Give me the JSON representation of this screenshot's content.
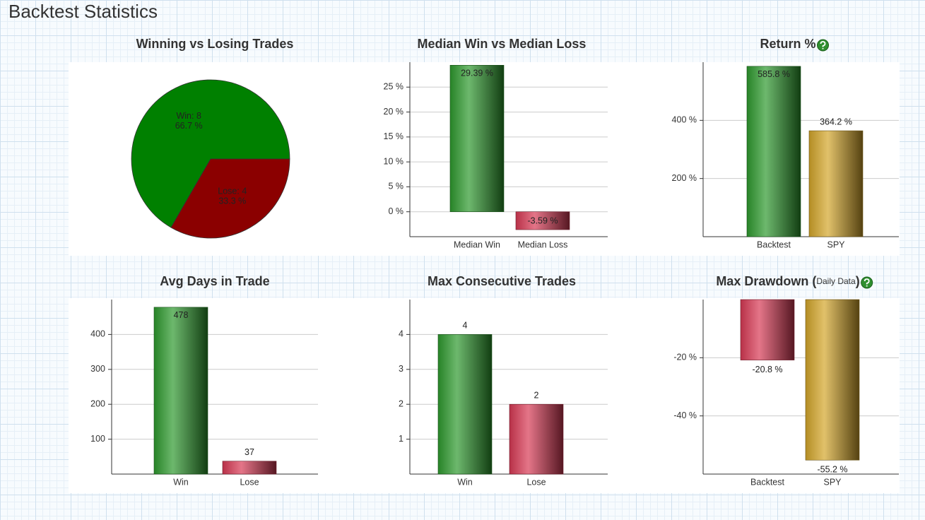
{
  "title": "Backtest Statistics",
  "chart_data": [
    {
      "type": "pie",
      "title": "Winning vs Losing Trades",
      "categories": [
        "Win",
        "Lose"
      ],
      "values": [
        8,
        4
      ],
      "value_labels": [
        "Win: 8",
        "Lose: 4"
      ],
      "shares": [
        66.7,
        33.3
      ],
      "share_labels": [
        "66.7 %",
        "33.3 %"
      ],
      "colors": [
        "#008000",
        "#8b0000"
      ]
    },
    {
      "type": "bar",
      "title": "Median Win vs Median Loss",
      "categories": [
        "Median Win",
        "Median Loss"
      ],
      "values": [
        29.39,
        -3.59
      ],
      "value_labels": [
        "29.39 %",
        "-3.59 %"
      ],
      "colors": [
        "#2e9a2e",
        "#d83a55"
      ],
      "ylim": [
        -5,
        30
      ],
      "yticks": [
        {
          "value": 0,
          "label": "0 %"
        },
        {
          "value": 5,
          "label": "5 %"
        },
        {
          "value": 10,
          "label": "10 %"
        },
        {
          "value": 15,
          "label": "15 %"
        },
        {
          "value": 20,
          "label": "20 %"
        },
        {
          "value": 25,
          "label": "25 %"
        }
      ],
      "grid": true
    },
    {
      "type": "bar",
      "title": "Return %",
      "categories": [
        "Backtest",
        "SPY"
      ],
      "values": [
        585.8,
        364.2
      ],
      "value_labels": [
        "585.8 %",
        "364.2 %"
      ],
      "colors": [
        "#2e9a2e",
        "#d4a62a"
      ],
      "ylim": [
        0,
        600
      ],
      "yticks": [
        {
          "value": 200,
          "label": "200 %"
        },
        {
          "value": 400,
          "label": "400 %"
        }
      ],
      "grid": true
    },
    {
      "type": "bar",
      "title": "Avg Days in Trade",
      "categories": [
        "Win",
        "Lose"
      ],
      "values": [
        478,
        37
      ],
      "colors": [
        "#2e9a2e",
        "#d83a55"
      ],
      "ylim": [
        0,
        500
      ],
      "yticks": [
        100,
        200,
        300,
        400
      ],
      "grid": true
    },
    {
      "type": "bar",
      "title": "Max Consecutive Trades",
      "categories": [
        "Win",
        "Lose"
      ],
      "values": [
        4,
        2
      ],
      "colors": [
        "#2e9a2e",
        "#d83a55"
      ],
      "ylim": [
        0,
        5
      ],
      "yticks": [
        1,
        2,
        3,
        4
      ],
      "grid": true
    },
    {
      "type": "bar",
      "title": "Max Drawdown (",
      "subtitle": "Daily Data",
      "title_end": ")",
      "categories": [
        "Backtest",
        "SPY"
      ],
      "values": [
        -20.8,
        -55.2
      ],
      "value_labels": [
        "-20.8 %",
        "-55.2 %"
      ],
      "colors": [
        "#d83a55",
        "#d4a62a"
      ],
      "ylim": [
        -60,
        0
      ],
      "yticks": [
        {
          "value": -40,
          "label": "-40 %"
        },
        {
          "value": -20,
          "label": "-20 %"
        }
      ],
      "grid": true
    }
  ]
}
